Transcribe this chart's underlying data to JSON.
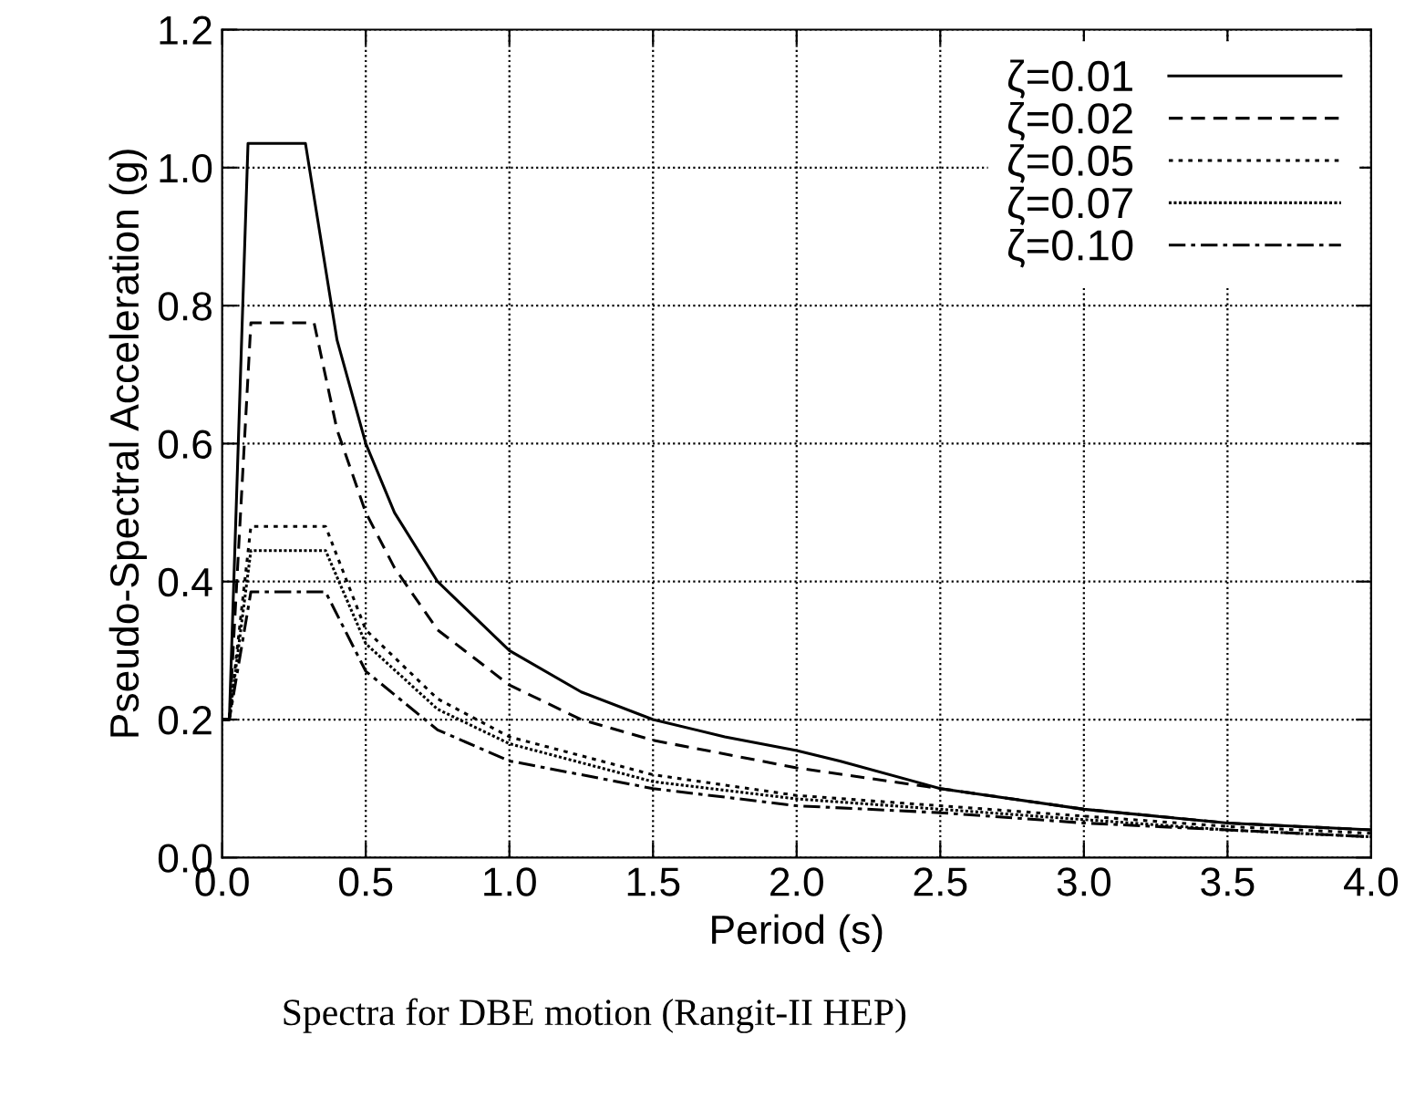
{
  "chart_data": {
    "type": "line",
    "xlabel": "Period (s)",
    "ylabel": "Pseudo-Spectral Acceleration (g)",
    "annotations": [
      "Spectra for DBE motion (Rangit-II HEP)"
    ],
    "xlim": [
      0,
      4
    ],
    "ylim": [
      0,
      1.2
    ],
    "xticks": [
      {
        "value": 0,
        "label": "0.0"
      },
      0.5,
      {
        "value": 1,
        "label": "1.0"
      },
      1.5,
      {
        "value": 2,
        "label": "2.0"
      },
      2.5,
      {
        "value": 3,
        "label": "3.0"
      },
      3.5,
      {
        "value": 4,
        "label": "4.0"
      }
    ],
    "yticks": [
      {
        "value": 0,
        "label": "0.0"
      },
      0.2,
      0.4,
      0.6,
      0.8,
      {
        "value": 1,
        "label": "1.0"
      },
      1.2
    ],
    "grid": true,
    "legend": "top right",
    "marker": "none",
    "series": [
      {
        "name": "ζ=0.01",
        "color": "#000000",
        "line_style": "solid",
        "x": [
          0,
          0.025,
          0.09,
          0.29,
          0.4,
          0.5,
          0.6,
          0.75,
          1.0,
          1.25,
          1.5,
          1.75,
          2.0,
          2.15,
          2.5,
          3.0,
          3.5,
          4.0
        ],
        "values": [
          0.2,
          0.2,
          1.035,
          1.035,
          0.75,
          0.6,
          0.5,
          0.4,
          0.3,
          0.24,
          0.2,
          0.175,
          0.155,
          0.14,
          0.1,
          0.07,
          0.05,
          0.04
        ]
      },
      {
        "name": "ζ=0.02",
        "color": "#000000",
        "line_style": "dashed",
        "x": [
          0,
          0.025,
          0.1,
          0.32,
          0.4,
          0.5,
          0.6,
          0.75,
          1.0,
          1.25,
          1.5,
          2.0,
          2.5,
          3.0,
          3.5,
          4.0
        ],
        "values": [
          0.2,
          0.2,
          0.775,
          0.775,
          0.62,
          0.5,
          0.42,
          0.33,
          0.25,
          0.2,
          0.17,
          0.13,
          0.1,
          0.07,
          0.05,
          0.04
        ]
      },
      {
        "name": "ζ=0.05",
        "color": "#000000",
        "line_style": "dotted",
        "x": [
          0,
          0.025,
          0.1,
          0.36,
          0.5,
          0.75,
          1.0,
          1.5,
          2.0,
          2.5,
          3.0,
          3.5,
          4.0
        ],
        "values": [
          0.2,
          0.2,
          0.48,
          0.48,
          0.33,
          0.23,
          0.175,
          0.12,
          0.09,
          0.075,
          0.06,
          0.045,
          0.035
        ]
      },
      {
        "name": "ζ=0.07",
        "color": "#000000",
        "line_style": "densely dotted",
        "x": [
          0,
          0.025,
          0.1,
          0.36,
          0.5,
          0.75,
          1.0,
          1.5,
          2.0,
          2.5,
          3.0,
          3.5,
          4.0
        ],
        "values": [
          0.2,
          0.2,
          0.445,
          0.445,
          0.31,
          0.215,
          0.165,
          0.11,
          0.085,
          0.07,
          0.055,
          0.04,
          0.03
        ]
      },
      {
        "name": "ζ=0.10",
        "color": "#000000",
        "line_style": "dashdot",
        "x": [
          0,
          0.025,
          0.1,
          0.36,
          0.5,
          0.75,
          1.0,
          1.5,
          2.0,
          2.5,
          3.0,
          3.5,
          4.0
        ],
        "values": [
          0.2,
          0.2,
          0.385,
          0.385,
          0.27,
          0.185,
          0.14,
          0.1,
          0.075,
          0.065,
          0.05,
          0.04,
          0.03
        ]
      }
    ]
  }
}
